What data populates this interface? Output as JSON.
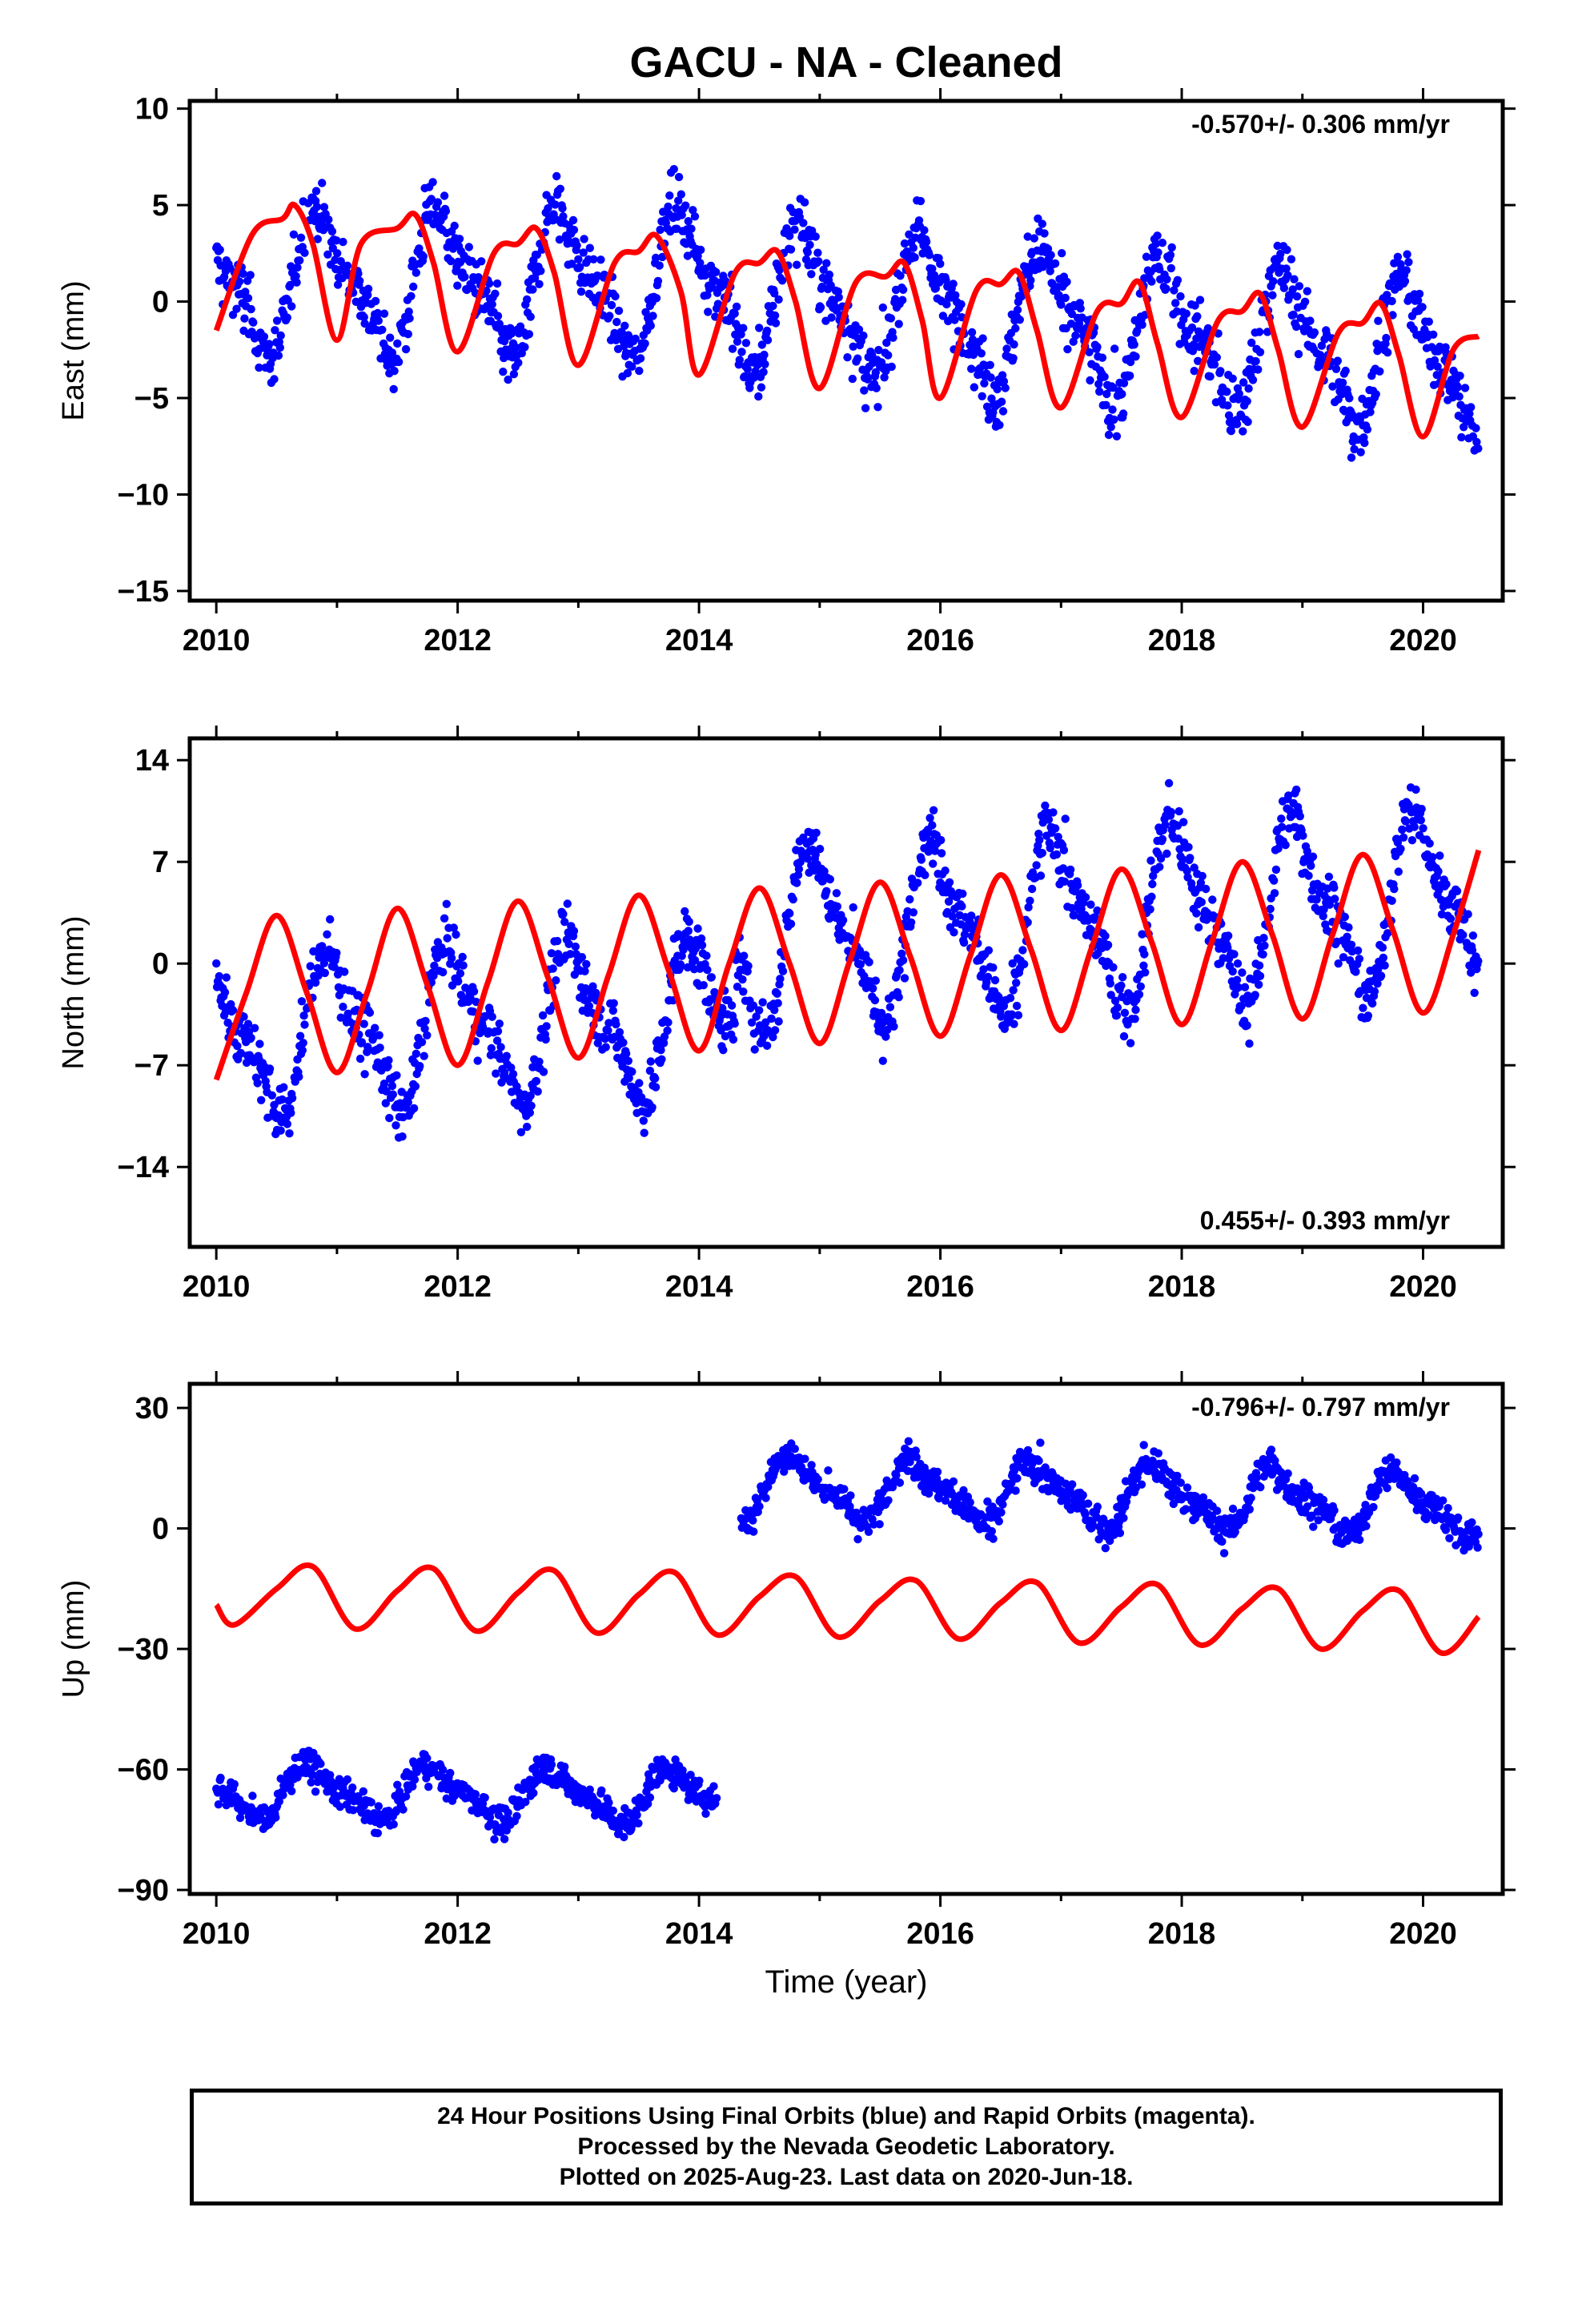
{
  "chart_data": [
    {
      "type": "scatter",
      "title": "GACU  - NA - Cleaned",
      "ylabel": "East (mm)",
      "xlabel": "",
      "rate_text": "-0.570+/- 0.306 mm/yr",
      "rate_position": "top-right",
      "xlim": [
        2009.78,
        2020.66
      ],
      "ylim": [
        -15.5,
        10.4
      ],
      "xticks": [
        "2010",
        "2012",
        "2014",
        "2016",
        "2018",
        "2020"
      ],
      "yticks": [
        "10",
        "5",
        "0",
        "−5",
        "−10",
        "−15"
      ],
      "ytick_values": [
        10,
        5,
        0,
        -5,
        -10,
        -15
      ],
      "grid": false,
      "series": [
        {
          "kind": "points",
          "color": "#0000ff",
          "note_range": [
            2010.0,
            2020.46
          ],
          "segments": [
            {
              "x_start": 2010.0,
              "x_end": 2014.3,
              "offset": 1.0,
              "trend": 0.0,
              "annual_amp": 3.3,
              "phase": 0.63,
              "scatter": 2.1,
              "step": 0.006
            },
            {
              "x_start": 2014.3,
              "x_end": 2020.46,
              "offset": 0.0,
              "trend": -0.57,
              "annual_amp": 3.3,
              "phase": 0.63,
              "scatter": 2.3,
              "step": 0.006
            }
          ]
        },
        {
          "kind": "line",
          "color": "#ff0000",
          "x": [
            2010.0,
            2010.3,
            2010.55,
            2010.65,
            2010.8,
            2011.0,
            2011.2,
            2011.5,
            2011.65,
            2011.8,
            2012.0,
            2012.3,
            2012.5,
            2012.65,
            2012.8,
            2013.0,
            2013.3,
            2013.5,
            2013.65,
            2013.85,
            2014.0,
            2014.3,
            2014.5,
            2014.65,
            2014.8,
            2015.0,
            2015.3,
            2015.55,
            2015.7,
            2015.85,
            2016.0,
            2016.3,
            2016.5,
            2016.65,
            2016.8,
            2017.0,
            2017.3,
            2017.5,
            2017.65,
            2017.8,
            2018.0,
            2018.3,
            2018.5,
            2018.65,
            2018.8,
            2019.0,
            2019.3,
            2019.5,
            2019.65,
            2019.8,
            2020.0,
            2020.25,
            2020.46
          ],
          "y": [
            -1.5,
            3.5,
            4.3,
            5.0,
            3.0,
            -2.0,
            3.0,
            3.8,
            4.5,
            2.0,
            -2.6,
            2.5,
            3.0,
            3.8,
            1.5,
            -3.3,
            2.0,
            2.6,
            3.4,
            0.5,
            -3.8,
            1.5,
            2.0,
            2.6,
            0.0,
            -4.5,
            1.0,
            1.3,
            2.0,
            -1.0,
            -5.0,
            0.6,
            0.9,
            1.5,
            -1.5,
            -5.5,
            -0.5,
            -0.1,
            1.0,
            -2.2,
            -6.0,
            -1.0,
            -0.5,
            0.4,
            -2.5,
            -6.5,
            -1.6,
            -1.1,
            -0.1,
            -2.8,
            -7.0,
            -2.5,
            -1.8
          ]
        }
      ]
    },
    {
      "type": "scatter",
      "title": "",
      "ylabel": "North (mm)",
      "xlabel": "",
      "rate_text": "0.455+/- 0.393 mm/yr",
      "rate_position": "bottom-right",
      "xlim": [
        2009.78,
        2020.66
      ],
      "ylim": [
        -19.5,
        15.5
      ],
      "xticks": [
        "2010",
        "2012",
        "2014",
        "2016",
        "2018",
        "2020"
      ],
      "yticks": [
        "14",
        "7",
        "0",
        "−7",
        "−14"
      ],
      "ytick_values": [
        14,
        7,
        0,
        -7,
        -14
      ],
      "grid": false,
      "series": [
        {
          "kind": "points",
          "color": "#0000ff",
          "segments": [
            {
              "x_start": 2010.0,
              "x_end": 2014.3,
              "offset": -3.5,
              "trend": 0.3,
              "annual_amp": 4.8,
              "phase": 0.72,
              "scatter": 2.8,
              "step": 0.006
            },
            {
              "x_start": 2014.3,
              "x_end": 2020.46,
              "offset": 2.0,
              "trend": 0.45,
              "annual_amp": 5.5,
              "phase": 0.72,
              "scatter": 2.8,
              "step": 0.006
            }
          ]
        },
        {
          "kind": "line",
          "color": "#ff0000",
          "x": [
            2010.0,
            2010.25,
            2010.5,
            2010.75,
            2011.0,
            2011.25,
            2011.5,
            2011.75,
            2012.0,
            2012.25,
            2012.5,
            2012.75,
            2013.0,
            2013.25,
            2013.5,
            2013.75,
            2014.0,
            2014.25,
            2014.5,
            2014.75,
            2015.0,
            2015.25,
            2015.5,
            2015.75,
            2016.0,
            2016.25,
            2016.5,
            2016.75,
            2017.0,
            2017.25,
            2017.5,
            2017.75,
            2018.0,
            2018.25,
            2018.5,
            2018.75,
            2019.0,
            2019.25,
            2019.5,
            2019.75,
            2020.0,
            2020.25,
            2020.46
          ],
          "y": [
            -8.0,
            -2.0,
            3.3,
            -2.0,
            -7.5,
            -2.0,
            3.8,
            -1.5,
            -7.0,
            -1.3,
            4.3,
            -1.0,
            -6.5,
            -0.8,
            4.7,
            -0.5,
            -6.0,
            0.0,
            5.2,
            0.0,
            -5.5,
            0.2,
            5.6,
            0.5,
            -5.0,
            0.6,
            6.1,
            1.0,
            -4.6,
            1.0,
            6.5,
            1.5,
            -4.2,
            1.5,
            7.0,
            2.0,
            -3.8,
            2.0,
            7.5,
            2.3,
            -3.4,
            2.0,
            7.8
          ]
        }
      ]
    },
    {
      "type": "scatter",
      "title": "",
      "ylabel": "Up (mm)",
      "xlabel": "Time (year)",
      "rate_text": "-0.796+/- 0.797 mm/yr",
      "rate_position": "top-right",
      "xlim": [
        2009.78,
        2020.66
      ],
      "ylim": [
        -91,
        36
      ],
      "xticks": [
        "2010",
        "2012",
        "2014",
        "2016",
        "2018",
        "2020"
      ],
      "yticks": [
        "30",
        "0",
        "−30",
        "−60",
        "−90"
      ],
      "ytick_values": [
        30,
        0,
        -30,
        -60,
        -90
      ],
      "grid": false,
      "series": [
        {
          "kind": "points",
          "color": "#0000ff",
          "segments": [
            {
              "x_start": 2010.0,
              "x_end": 2014.15,
              "offset": -67.0,
              "trend": -0.3,
              "annual_amp": 6.0,
              "phase": 0.55,
              "scatter": 5.0,
              "step": 0.006
            },
            {
              "x_start": 2014.35,
              "x_end": 2020.46,
              "offset": 10.0,
              "trend": -0.8,
              "annual_amp": 7.0,
              "phase": 0.55,
              "scatter": 5.5,
              "step": 0.006
            }
          ]
        },
        {
          "kind": "line",
          "color": "#ff0000",
          "x": [
            2010.0,
            2010.15,
            2010.5,
            2010.8,
            2011.15,
            2011.5,
            2011.8,
            2012.15,
            2012.5,
            2012.8,
            2013.15,
            2013.5,
            2013.8,
            2014.15,
            2014.5,
            2014.8,
            2015.15,
            2015.5,
            2015.8,
            2016.15,
            2016.5,
            2016.8,
            2017.15,
            2017.5,
            2017.8,
            2018.15,
            2018.5,
            2018.8,
            2019.15,
            2019.5,
            2019.8,
            2020.15,
            2020.46
          ],
          "y": [
            -19,
            -24,
            -15,
            -9.5,
            -25,
            -15.5,
            -10,
            -25.5,
            -16,
            -10.5,
            -26,
            -16.5,
            -11,
            -26.5,
            -17,
            -12,
            -27,
            -18,
            -13,
            -27.5,
            -18.5,
            -13.5,
            -28.5,
            -19.5,
            -14,
            -29,
            -20,
            -15,
            -30,
            -20.5,
            -15.5,
            -31,
            -22
          ]
        }
      ]
    }
  ],
  "footer": {
    "line1": "24 Hour Positions Using Final Orbits (blue) and Rapid Orbits (magenta).",
    "line2": "Processed by the Nevada Geodetic Laboratory.",
    "line3": "Plotted on 2025-Aug-23. Last data on 2020-Jun-18."
  }
}
